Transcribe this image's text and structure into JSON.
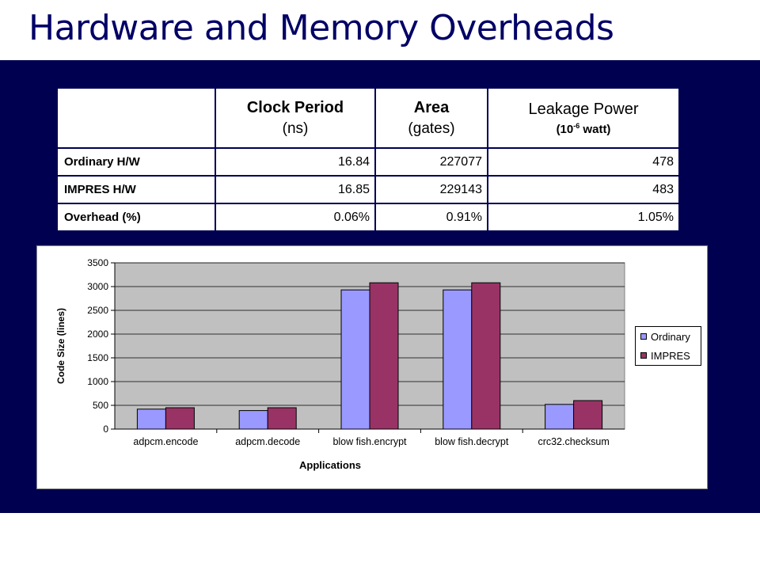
{
  "slide": {
    "title": "Hardware and Memory Overheads"
  },
  "table": {
    "headers": [
      {
        "main": "",
        "sub": ""
      },
      {
        "main": "Clock Period",
        "sub": "(ns)"
      },
      {
        "main": "Area",
        "sub": "(gates)"
      },
      {
        "main": "Leakage Power",
        "sub_pre": "(10",
        "sub_sup": "-6",
        "sub_post": " watt)"
      }
    ],
    "rows": [
      {
        "label": "Ordinary H/W",
        "cells": [
          "16.84",
          "227077",
          "478"
        ]
      },
      {
        "label": "IMPRES H/W",
        "cells": [
          "16.85",
          "229143",
          "483"
        ]
      },
      {
        "label": "Overhead (%)",
        "cells": [
          "0.06%",
          "0.91%",
          "1.05%"
        ]
      }
    ]
  },
  "chart_data": {
    "type": "bar",
    "xlabel": "Applications",
    "ylabel": "Code Size (lines)",
    "ylim": [
      0,
      3500
    ],
    "yticks": [
      0,
      500,
      1000,
      1500,
      2000,
      2500,
      3000,
      3500
    ],
    "categories": [
      "adpcm.encode",
      "adpcm.decode",
      "blow fish.encrypt",
      "blow fish.decrypt",
      "crc32.checksum"
    ],
    "series": [
      {
        "name": "Ordinary",
        "color": "#9999ff",
        "values": [
          420,
          390,
          2930,
          2930,
          520
        ]
      },
      {
        "name": "IMPRES",
        "color": "#993366",
        "values": [
          450,
          450,
          3080,
          3080,
          600
        ]
      }
    ],
    "grid": true,
    "legend_position": "right",
    "plot_background": "#c0c0c0"
  }
}
